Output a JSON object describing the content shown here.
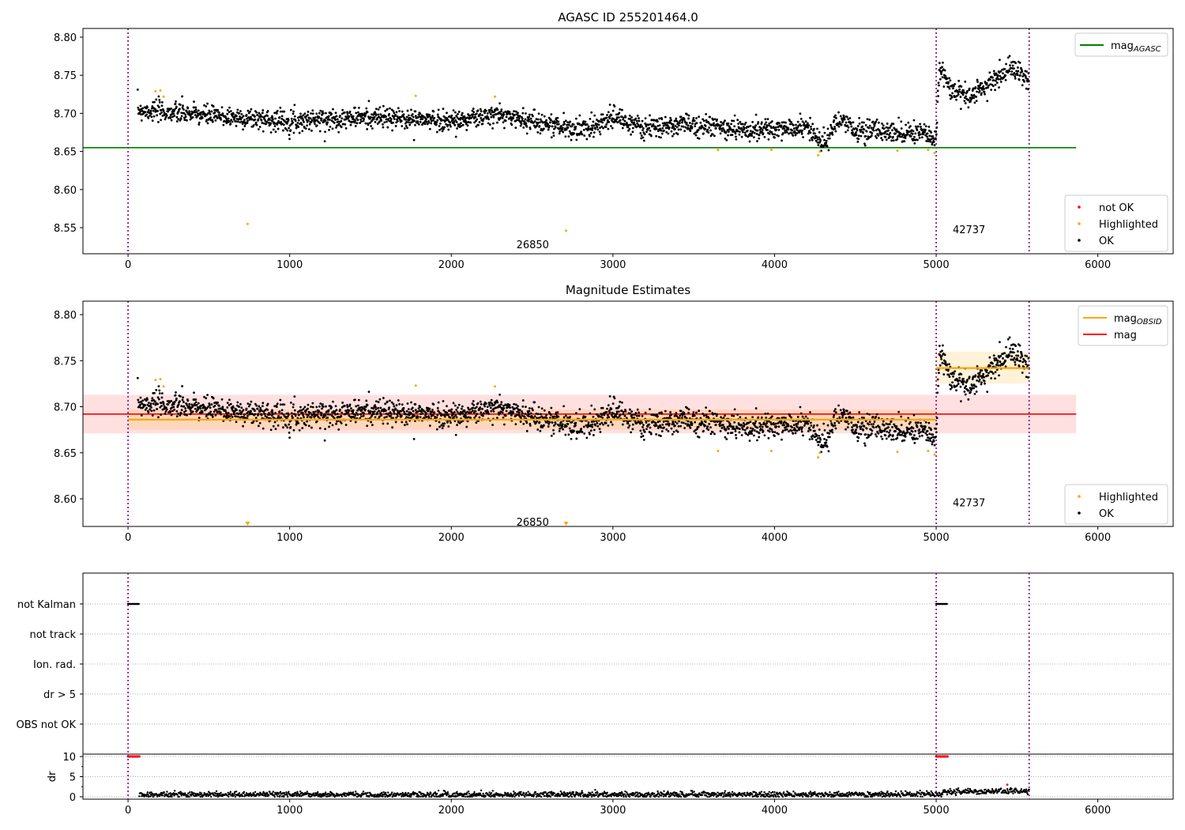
{
  "chart_data": [
    {
      "type": "scatter",
      "title": "AGASC ID 255201464.0",
      "xlim": [
        -279,
        6466
      ],
      "ylim": [
        8.5158,
        8.8114
      ],
      "xticks": [
        0,
        1000,
        2000,
        3000,
        4000,
        5000,
        6000
      ],
      "yticks": [
        8.55,
        8.6,
        8.65,
        8.7,
        8.75,
        8.8
      ],
      "obs_boundaries": [
        0,
        5000,
        5575
      ],
      "obs_labels": [
        {
          "text": "26850",
          "x": 2500,
          "y": 8.528
        },
        {
          "text": "42737",
          "x": 5200,
          "y": 8.548
        }
      ],
      "mag_agasc": 8.655,
      "mag_agasc_xrange": [
        -279,
        5866
      ],
      "legend_lines": [
        {
          "label": "mag",
          "sub": "AGASC",
          "color": "#008000"
        }
      ],
      "legend_points": [
        {
          "label": "not OK",
          "color": "#ff0000"
        },
        {
          "label": "Highlighted",
          "color": "#ffa500"
        },
        {
          "label": "OK",
          "color": "#000000"
        }
      ]
    },
    {
      "type": "scatter",
      "title": "Magnitude Estimates",
      "xlim": [
        -279,
        6466
      ],
      "ylim": [
        8.57,
        8.8146
      ],
      "xticks": [
        0,
        1000,
        2000,
        3000,
        4000,
        5000,
        6000
      ],
      "yticks": [
        8.6,
        8.65,
        8.7,
        8.75,
        8.8
      ],
      "obs_labels": [
        {
          "text": "26850",
          "x": 2500,
          "y": 8.575
        },
        {
          "text": "42737",
          "x": 5200,
          "y": 8.596
        }
      ],
      "mag": {
        "value": 8.692,
        "band": [
          8.671,
          8.713
        ],
        "xrange": [
          -279,
          5866
        ],
        "color": "#ff0000"
      },
      "mag_obsid": [
        {
          "x0": 0,
          "x1": 5000,
          "value": 8.686,
          "band": [
            8.675,
            8.697
          ]
        },
        {
          "x0": 5000,
          "x1": 5575,
          "value": 8.742,
          "band": [
            8.725,
            8.76
          ]
        }
      ],
      "legend_lines": [
        {
          "label": "mag",
          "sub": "OBSID",
          "color": "#ffa500"
        },
        {
          "label": "mag",
          "sub": "",
          "color": "#ff0000"
        }
      ],
      "legend_points": [
        {
          "label": "Highlighted",
          "color": "#ffa500"
        },
        {
          "label": "OK",
          "color": "#000000"
        }
      ]
    },
    {
      "type": "scatter",
      "flag_categories": [
        "not Kalman",
        "not track",
        "Ion. rad.",
        "dr > 5",
        "OBS not OK"
      ],
      "flag_ranges": {
        "not Kalman": [
          [
            0,
            70
          ],
          [
            5000,
            5070
          ]
        ]
      },
      "dr_ylabel": "dr",
      "dr_ylim": [
        -0.6,
        10.6
      ],
      "dr_yticks": [
        0,
        5,
        10
      ],
      "dr_high_ranges": [
        [
          0,
          70
        ],
        [
          5000,
          70
        ]
      ],
      "dr_outlier": {
        "x": 5440,
        "y": 3.0
      },
      "xticks": [
        0,
        1000,
        2000,
        3000,
        4000,
        5000,
        6000
      ]
    }
  ],
  "series": {
    "trend": [
      [
        50,
        8.705
      ],
      [
        500,
        8.697
      ],
      [
        1000,
        8.69
      ],
      [
        1500,
        8.695
      ],
      [
        2000,
        8.69
      ],
      [
        2300,
        8.698
      ],
      [
        2500,
        8.69
      ],
      [
        2800,
        8.678
      ],
      [
        3000,
        8.695
      ],
      [
        3200,
        8.68
      ],
      [
        3500,
        8.686
      ],
      [
        3700,
        8.68
      ],
      [
        4000,
        8.678
      ],
      [
        4200,
        8.682
      ],
      [
        4300,
        8.66
      ],
      [
        4400,
        8.69
      ],
      [
        4500,
        8.678
      ],
      [
        4900,
        8.675
      ],
      [
        5000,
        8.665
      ],
      [
        5020,
        8.76
      ],
      [
        5100,
        8.732
      ],
      [
        5200,
        8.72
      ],
      [
        5300,
        8.735
      ],
      [
        5450,
        8.76
      ],
      [
        5575,
        8.745
      ]
    ],
    "noise": 0.009,
    "highlighted": [
      [
        170,
        8.729
      ],
      [
        200,
        8.73
      ],
      [
        220,
        8.722
      ],
      [
        740,
        8.555
      ],
      [
        1780,
        8.723
      ],
      [
        2270,
        8.722
      ],
      [
        2710,
        8.546
      ],
      [
        3650,
        8.652
      ],
      [
        3980,
        8.652
      ],
      [
        4270,
        8.645
      ],
      [
        4280,
        8.65
      ],
      [
        4760,
        8.651
      ],
      [
        4950,
        8.652
      ],
      [
        4990,
        8.648
      ]
    ]
  }
}
